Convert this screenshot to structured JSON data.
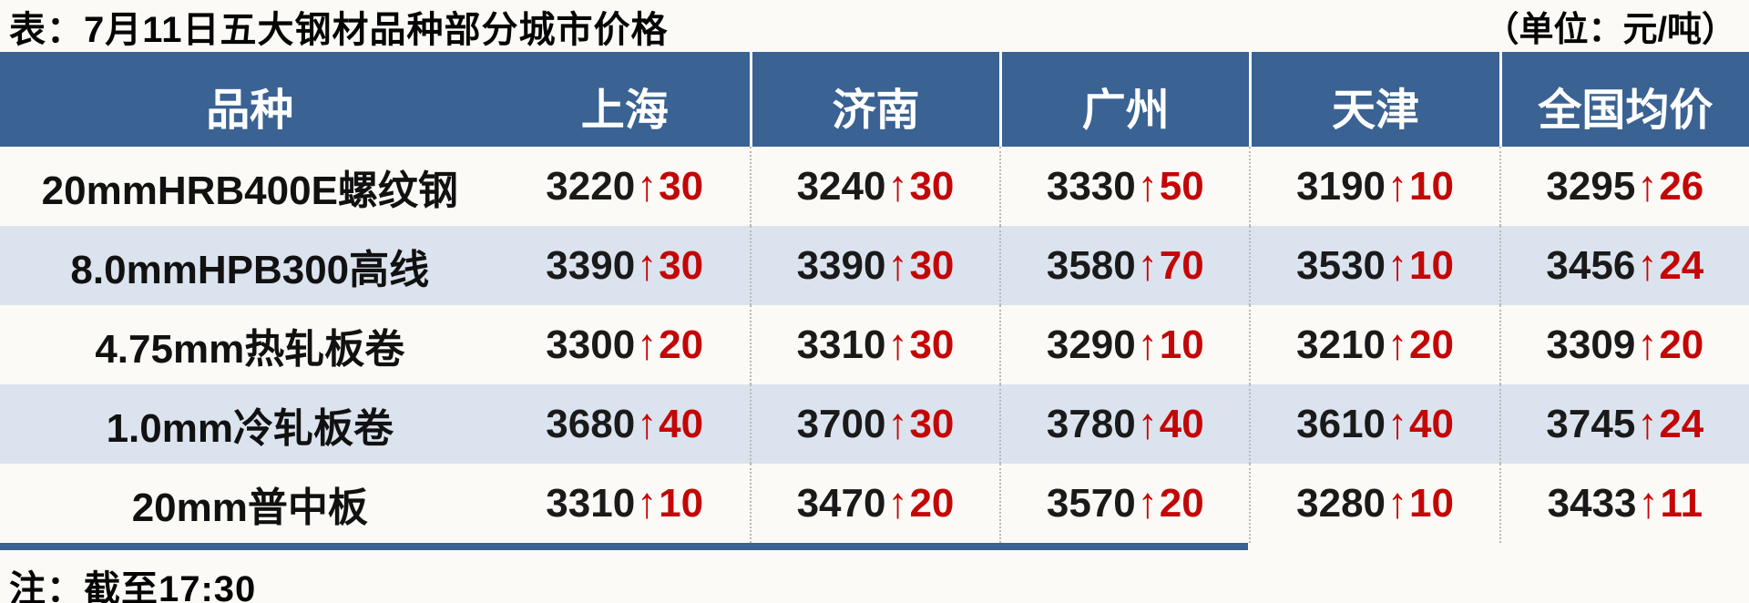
{
  "title": "表：7月11日五大钢材品种部分城市价格",
  "unit_label": "（单位：元/吨）",
  "note": "注：截至17:30",
  "colors": {
    "header_blue": "#3a6292",
    "zebra_row": "#dbe3ee",
    "up_red": "#c40606",
    "text_black": "#1a1a1a"
  },
  "table": {
    "header": [
      "品种",
      "上海",
      "济南",
      "广州",
      "天津",
      "全国均价"
    ],
    "rows": [
      {
        "product": "20mmHRB400E螺纹钢",
        "cells": [
          {
            "price": "3220",
            "arrow": "↑",
            "change": "30"
          },
          {
            "price": "3240",
            "arrow": "↑",
            "change": "30"
          },
          {
            "price": "3330",
            "arrow": "↑",
            "change": "50"
          },
          {
            "price": "3190",
            "arrow": "↑",
            "change": "10"
          },
          {
            "price": "3295",
            "arrow": "↑",
            "change": "26"
          }
        ]
      },
      {
        "product": "8.0mmHPB300高线",
        "cells": [
          {
            "price": "3390",
            "arrow": "↑",
            "change": "30"
          },
          {
            "price": "3390",
            "arrow": "↑",
            "change": "30"
          },
          {
            "price": "3580",
            "arrow": "↑",
            "change": "70"
          },
          {
            "price": "3530",
            "arrow": "↑",
            "change": "10"
          },
          {
            "price": "3456",
            "arrow": "↑",
            "change": "24"
          }
        ]
      },
      {
        "product": "4.75mm热轧板卷",
        "cells": [
          {
            "price": "3300",
            "arrow": "↑",
            "change": "20"
          },
          {
            "price": "3310",
            "arrow": "↑",
            "change": "30"
          },
          {
            "price": "3290",
            "arrow": "↑",
            "change": "10"
          },
          {
            "price": "3210",
            "arrow": "↑",
            "change": "20"
          },
          {
            "price": "3309",
            "arrow": "↑",
            "change": "20"
          }
        ]
      },
      {
        "product": "1.0mm冷轧板卷",
        "cells": [
          {
            "price": "3680",
            "arrow": "↑",
            "change": "40"
          },
          {
            "price": "3700",
            "arrow": "↑",
            "change": "30"
          },
          {
            "price": "3780",
            "arrow": "↑",
            "change": "40"
          },
          {
            "price": "3610",
            "arrow": "↑",
            "change": "40"
          },
          {
            "price": "3745",
            "arrow": "↑",
            "change": "24"
          }
        ]
      },
      {
        "product": "20mm普中板",
        "cells": [
          {
            "price": "3310",
            "arrow": "↑",
            "change": "10"
          },
          {
            "price": "3470",
            "arrow": "↑",
            "change": "20"
          },
          {
            "price": "3570",
            "arrow": "↑",
            "change": "20"
          },
          {
            "price": "3280",
            "arrow": "↑",
            "change": "10"
          },
          {
            "price": "3433",
            "arrow": "↑",
            "change": "11"
          }
        ]
      }
    ]
  }
}
